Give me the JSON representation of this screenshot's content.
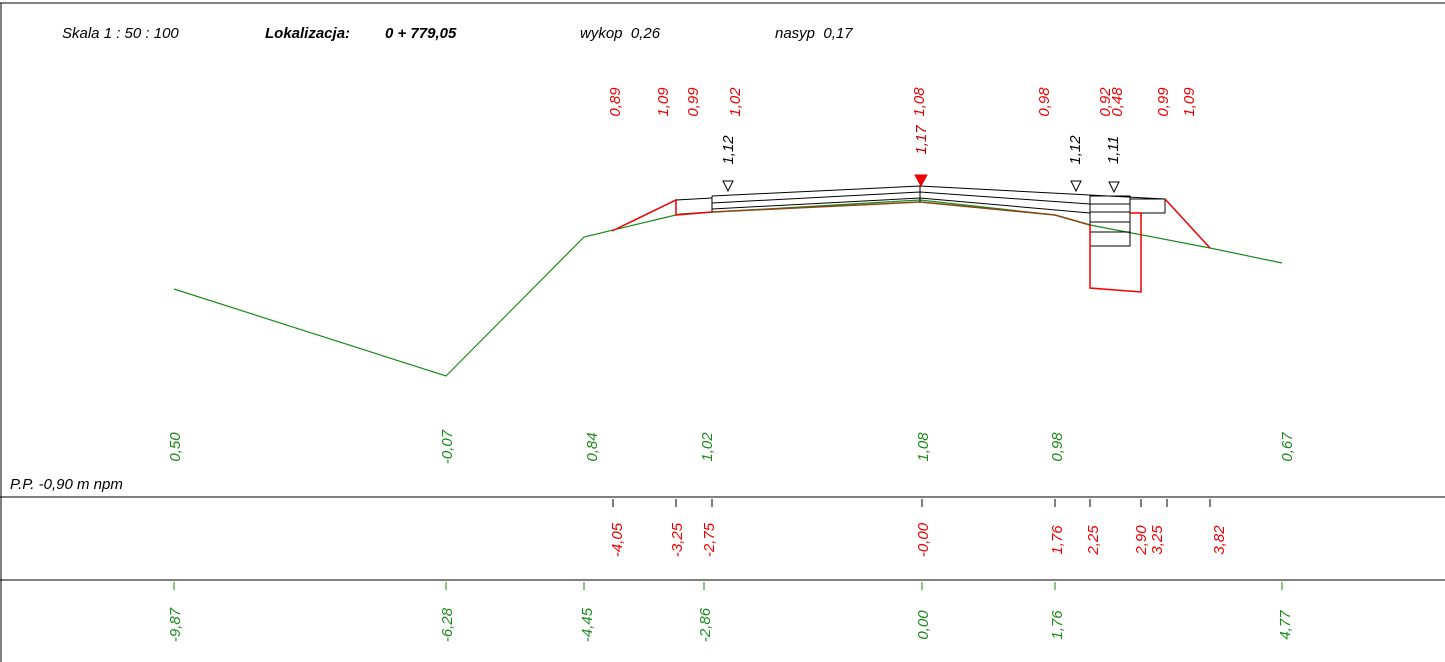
{
  "header": {
    "scale": "Skala 1 : 50 : 100",
    "location_label": "Lokalizacja:",
    "location_value": "0 + 779,05",
    "cut": "wykop  0,26",
    "fill": "nasyp  0,17"
  },
  "datum": "P.P. -0,90 m npm",
  "top_red_labels": [
    "0,89",
    "1,09",
    "0,99",
    "1,02",
    "1,08",
    "0,98",
    "0,92",
    "0,48",
    "0,99",
    "1,09"
  ],
  "top_dark_labels": [
    "1,17"
  ],
  "top_black_labels": [
    "1,12",
    "1,12",
    "1,11"
  ],
  "ground_labels": [
    "0,50",
    "-0,07",
    "0,84",
    "1,02",
    "1,08",
    "0,98",
    "0,67"
  ],
  "design_offsets": [
    "-4,05",
    "-3,25",
    "-2,75",
    "-0,00",
    "1,76",
    "2,25",
    "2,90",
    "3,25",
    "3,82"
  ],
  "ground_offsets": [
    "-9,87",
    "-6,28",
    "-4,45",
    "-2,86",
    "0,00",
    "1,76",
    "4,77"
  ]
}
